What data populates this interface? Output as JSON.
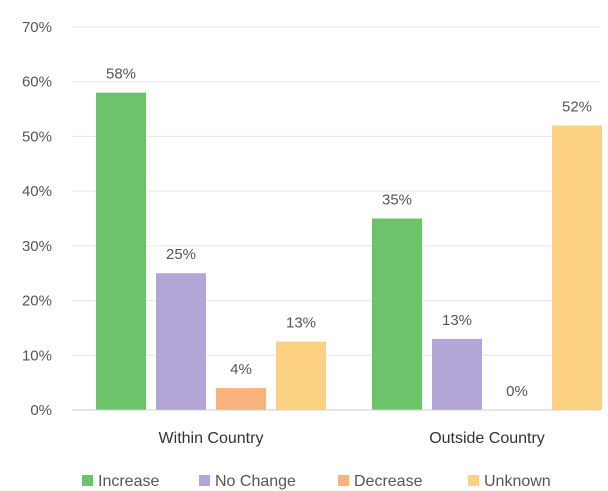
{
  "chart_data": {
    "type": "bar",
    "categories": [
      "Within Country",
      "Outside Country"
    ],
    "series": [
      {
        "name": "Increase",
        "values": [
          58,
          35
        ],
        "labels": [
          "58%",
          "35%"
        ],
        "color": "#6cc36a"
      },
      {
        "name": "No Change",
        "values": [
          25,
          13
        ],
        "labels": [
          "25%",
          "13%"
        ],
        "color": "#b3a6d6"
      },
      {
        "name": "Decrease",
        "values": [
          4,
          0
        ],
        "labels": [
          "4%",
          "0%"
        ],
        "color": "#f8b27c"
      },
      {
        "name": "Unknown",
        "values": [
          12.5,
          52
        ],
        "labels": [
          "13%",
          "52%"
        ],
        "color": "#fdd282"
      }
    ],
    "y_ticks": [
      "0%",
      "10%",
      "20%",
      "30%",
      "40%",
      "50%",
      "60%",
      "70%"
    ],
    "ylim": [
      0,
      70
    ],
    "grid": true,
    "legend_position": "bottom"
  }
}
